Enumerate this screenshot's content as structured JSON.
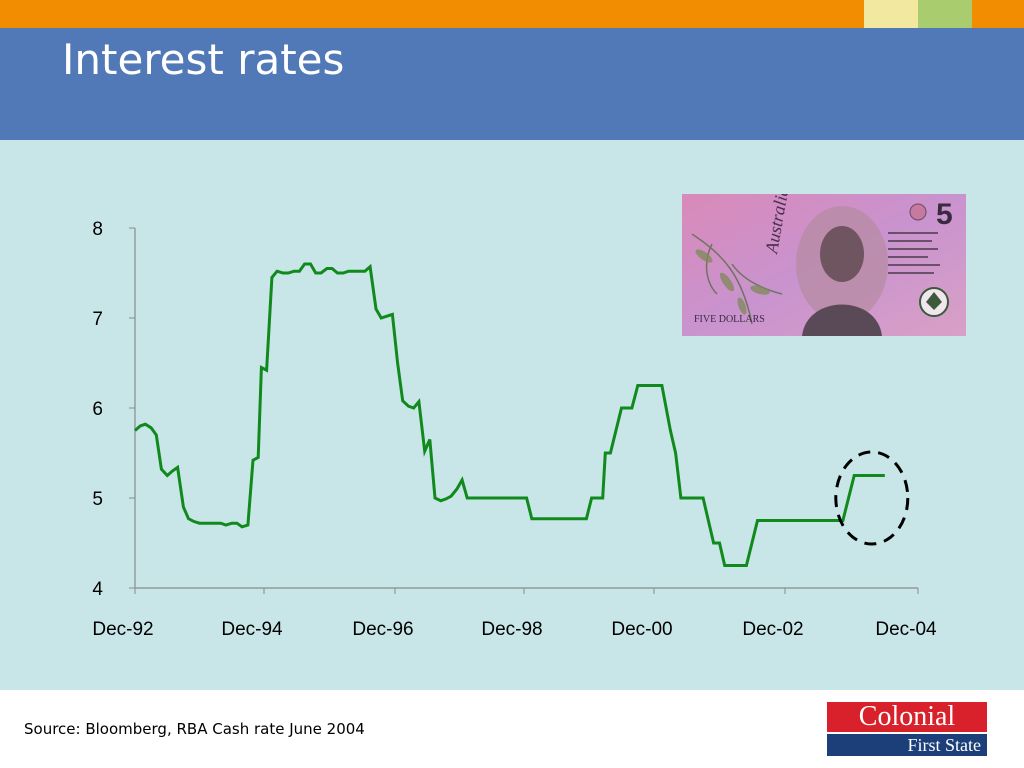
{
  "slide": {
    "title": "Interest rates",
    "source": "Source: Bloomberg, RBA Cash rate June 2004",
    "colors": {
      "top_bar": "#f28c00",
      "header": "#5179b8",
      "panel": "#c8e6e8",
      "swatch_1": "#f2e8a0",
      "swatch_2": "#a8cc6e",
      "line": "#108a1c"
    }
  },
  "logo": {
    "line1": "Colonial",
    "line2": "First State"
  },
  "banknote": {
    "icon": "australian-five-dollar-note-image"
  },
  "chart_data": {
    "type": "line",
    "title": "",
    "xlabel": "",
    "ylabel": "",
    "ylim": [
      4,
      8
    ],
    "yticks": [
      4,
      5,
      6,
      7,
      8
    ],
    "xticks": [
      "Dec-92",
      "Dec-94",
      "Dec-96",
      "Dec-98",
      "Dec-00",
      "Dec-02",
      "Dec-04"
    ],
    "xlim": [
      1992.92,
      2005.0
    ],
    "grid": false,
    "highlight": {
      "shape": "dashed-circle",
      "around": "2004 rate rise"
    },
    "series": [
      {
        "values": [
          [
            1992.92,
            5.75
          ],
          [
            1993.0,
            5.8
          ],
          [
            1993.08,
            5.82
          ],
          [
            1993.17,
            5.78
          ],
          [
            1993.25,
            5.7
          ],
          [
            1993.33,
            5.32
          ],
          [
            1993.42,
            5.25
          ],
          [
            1993.5,
            5.3
          ],
          [
            1993.58,
            5.34
          ],
          [
            1993.67,
            4.9
          ],
          [
            1993.75,
            4.77
          ],
          [
            1993.83,
            4.74
          ],
          [
            1993.92,
            4.72
          ],
          [
            1994.0,
            4.72
          ],
          [
            1994.25,
            4.72
          ],
          [
            1994.33,
            4.7
          ],
          [
            1994.42,
            4.72
          ],
          [
            1994.5,
            4.72
          ],
          [
            1994.58,
            4.68
          ],
          [
            1994.67,
            4.7
          ],
          [
            1994.75,
            5.42
          ],
          [
            1994.83,
            5.45
          ],
          [
            1994.88,
            6.45
          ],
          [
            1994.96,
            6.42
          ],
          [
            1995.04,
            7.45
          ],
          [
            1995.12,
            7.52
          ],
          [
            1995.21,
            7.5
          ],
          [
            1995.29,
            7.5
          ],
          [
            1995.38,
            7.52
          ],
          [
            1995.46,
            7.52
          ],
          [
            1995.54,
            7.6
          ],
          [
            1995.63,
            7.6
          ],
          [
            1995.71,
            7.5
          ],
          [
            1995.79,
            7.5
          ],
          [
            1995.88,
            7.55
          ],
          [
            1995.96,
            7.55
          ],
          [
            1996.04,
            7.5
          ],
          [
            1996.13,
            7.5
          ],
          [
            1996.21,
            7.52
          ],
          [
            1996.46,
            7.52
          ],
          [
            1996.54,
            7.57
          ],
          [
            1996.63,
            7.1
          ],
          [
            1996.71,
            7.0
          ],
          [
            1996.88,
            7.04
          ],
          [
            1996.96,
            6.5
          ],
          [
            1997.04,
            6.08
          ],
          [
            1997.13,
            6.02
          ],
          [
            1997.21,
            6.0
          ],
          [
            1997.29,
            6.07
          ],
          [
            1997.38,
            5.52
          ],
          [
            1997.46,
            5.65
          ],
          [
            1997.54,
            5.0
          ],
          [
            1997.63,
            4.97
          ],
          [
            1997.71,
            4.99
          ],
          [
            1997.79,
            5.02
          ],
          [
            1997.88,
            5.1
          ],
          [
            1997.96,
            5.2
          ],
          [
            1998.04,
            5.0
          ],
          [
            1998.96,
            5.0
          ],
          [
            1999.04,
            4.77
          ],
          [
            1999.88,
            4.77
          ],
          [
            1999.96,
            5.0
          ],
          [
            2000.13,
            5.0
          ],
          [
            2000.17,
            5.5
          ],
          [
            2000.25,
            5.5
          ],
          [
            2000.42,
            6.0
          ],
          [
            2000.58,
            6.0
          ],
          [
            2000.67,
            6.25
          ],
          [
            2001.04,
            6.25
          ],
          [
            2001.17,
            5.75
          ],
          [
            2001.25,
            5.5
          ],
          [
            2001.33,
            5.0
          ],
          [
            2001.67,
            5.0
          ],
          [
            2001.83,
            4.5
          ],
          [
            2001.92,
            4.5
          ],
          [
            2002.0,
            4.25
          ],
          [
            2002.33,
            4.25
          ],
          [
            2002.5,
            4.75
          ],
          [
            2003.79,
            4.75
          ],
          [
            2003.96,
            5.25
          ],
          [
            2004.42,
            5.25
          ]
        ]
      }
    ]
  }
}
